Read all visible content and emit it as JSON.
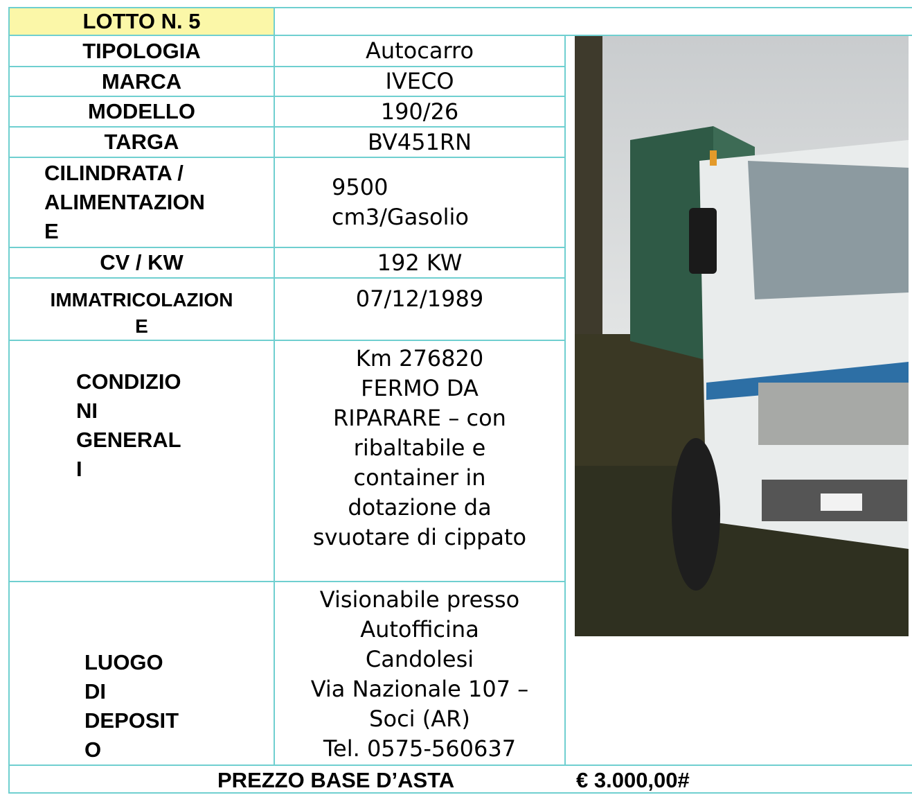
{
  "lot": "LOTTO N. 5",
  "rows": [
    {
      "label": "TIPOLOGIA",
      "value": "Autocarro"
    },
    {
      "label": "MARCA",
      "value": "IVECO"
    },
    {
      "label": "MODELLO",
      "value": "190/26"
    },
    {
      "label": "TARGA",
      "value": "BV451RN"
    },
    {
      "label": "CILINDRATA /\nALIMENTAZION\nE",
      "value": "9500\ncm3/Gasolio"
    },
    {
      "label": "CV / KW",
      "value": "192 KW"
    },
    {
      "label": "IMMATRICOLAZION\nE",
      "value": "07/12/1989"
    },
    {
      "label": "CONDIZIO\nNI\nGENERAL\nI",
      "value": "Km 276820\nFERMO DA\nRIPARARE – con\nribaltabile e\ncontainer in\ndotazione da\nsvuotare di cippato"
    },
    {
      "label": "LUOGO\nDI\nDEPOSIT\nO",
      "value": "Visionabile presso\nAutofficina\nCandolesi\nVia Nazionale 107 –\nSoci (AR)\nTel. 0575-560637"
    }
  ],
  "price": {
    "label": "PREZZO BASE D’ASTA",
    "value": "€ 3.000,00#"
  }
}
